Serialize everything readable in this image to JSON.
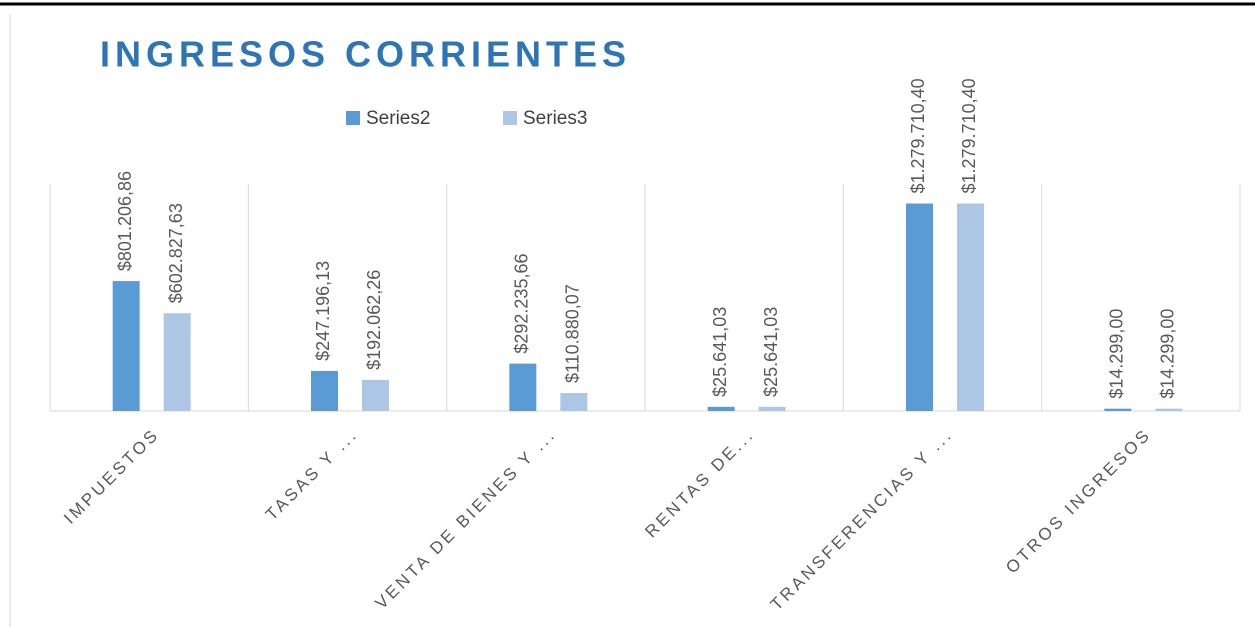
{
  "chart_data": {
    "type": "bar",
    "title": "INGRESOS CORRIENTES",
    "categories": [
      "IMPUESTOS",
      "TASAS Y ...",
      "VENTA DE BIENES Y ...",
      "RENTAS DE...",
      "TRANSFERENCIAS Y ...",
      "OTROS INGRESOS"
    ],
    "series": [
      {
        "name": "Series2",
        "color": "#5b9bd5",
        "values": [
          801206.86,
          247196.13,
          292235.66,
          25641.03,
          1279710.4,
          14299.0
        ],
        "value_labels": [
          "$801.206,86",
          "$247.196,13",
          "$292.235,66",
          "$25.641,03",
          "$1.279.710,40",
          "$14.299,00"
        ]
      },
      {
        "name": "Series3",
        "color": "#adc6e6",
        "values": [
          602827.63,
          192062.26,
          110880.07,
          25641.03,
          1279710.4,
          14299.0
        ],
        "value_labels": [
          "$602.827,63",
          "$192.062,26",
          "$110.880,07",
          "$25.641,03",
          "$1.279.710,40",
          "$14.299,00"
        ]
      }
    ],
    "ylim": [
      0,
      1400000
    ]
  }
}
